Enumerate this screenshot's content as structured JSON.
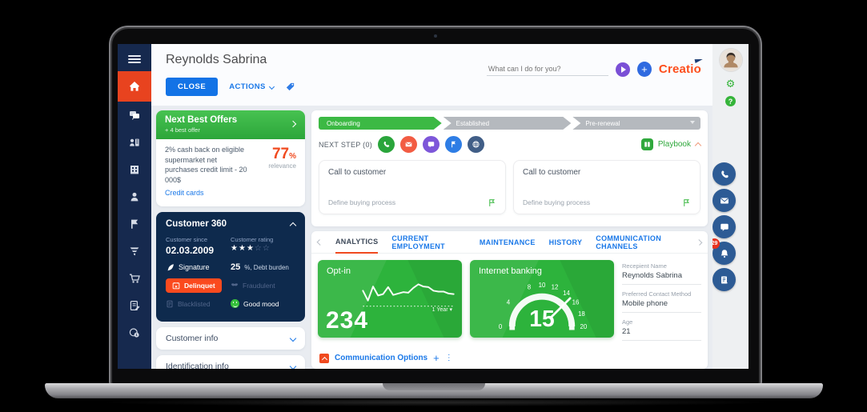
{
  "app": {
    "logo": "Creatio",
    "assistant_placeholder": "What can I do for you?",
    "colors": {
      "brand_orange": "#fd4e1c",
      "accent_orange": "#f04a1f",
      "green": "#2db33c",
      "navy": "#16294e",
      "blue": "#1a78e8"
    }
  },
  "sidebar": {
    "icons": [
      "hamburger-menu-icon",
      "home-icon",
      "chats-icon",
      "contacts-icon",
      "accounts-icon",
      "person-icon",
      "flag-icon",
      "funnel-icon",
      "cart-icon",
      "orders-icon",
      "finance-icon"
    ]
  },
  "header": {
    "title": "Reynolds Sabrina",
    "close_label": "CLOSE",
    "actions_label": "ACTIONS"
  },
  "rail": {
    "icons": [
      "user-avatar",
      "gear-icon",
      "help-icon"
    ],
    "gear_glyph": "⚙"
  },
  "fabs": {
    "icons": [
      "phone-icon",
      "mail-icon",
      "chat-icon",
      "bell-icon",
      "feed-icon"
    ],
    "bell_badge": "29"
  },
  "next_best_offers": {
    "title": "Next Best Offers",
    "subtitle": "+ 4 best offer",
    "offer_text": "2% cash back on eligible supermarket net purchases credit limit - 20 000$",
    "relevance_value": "77",
    "relevance_unit": "%",
    "relevance_label": "relevance",
    "link_label": "Credit cards"
  },
  "customer360": {
    "title": "Customer 360",
    "since_label": "Customer since",
    "since_value": "02.03.2009",
    "rating_label": "Customer rating",
    "rating": 3,
    "rating_max": 5,
    "signature_label": "Signature",
    "debt_value": "25",
    "debt_label": "%, Debt burden",
    "flag_delinquent": "Delinquet",
    "flag_fraudulent": "Fraudulent",
    "flag_blacklisted": "Blacklisted",
    "flag_mood": "Good mood"
  },
  "accordions": [
    {
      "label": "Customer info"
    },
    {
      "label": "Identification info"
    }
  ],
  "pipeline": {
    "stages": [
      "Onboarding",
      "Established",
      "Pre-renewal"
    ],
    "active_stage": "Onboarding"
  },
  "next_step": {
    "label": "NEXT STEP (0)",
    "icons": [
      "call-step-icon",
      "email-step-icon",
      "chat-step-icon",
      "task-step-icon",
      "web-step-icon"
    ],
    "playbook_label": "Playbook"
  },
  "tasks": [
    {
      "title": "Call to customer",
      "subtitle": "Define buying process"
    },
    {
      "title": "Call to customer",
      "subtitle": "Define buying process"
    }
  ],
  "tabs": {
    "items": [
      "ANALYTICS",
      "CURRENT EMPLOYMENT",
      "MAINTENANCE",
      "HISTORY",
      "COMMUNICATION CHANNELS"
    ],
    "active": "ANALYTICS"
  },
  "chart_data": [
    {
      "type": "line",
      "title": "Opt-in",
      "total": "234",
      "period_label": "1 Year",
      "values": [
        45,
        10,
        60,
        28,
        33,
        58,
        30,
        35,
        40,
        38,
        55,
        68,
        60,
        58,
        45,
        42,
        42,
        35,
        33
      ],
      "baseline": "dotted",
      "legend_position": "none"
    },
    {
      "type": "gauge",
      "title": "Internet banking",
      "value": 15,
      "min": 0,
      "max": 20,
      "tick_labels": [
        0,
        4,
        8,
        10,
        12,
        14,
        16,
        18,
        20
      ]
    }
  ],
  "details": [
    {
      "label": "Recepient Name",
      "value": "Reynolds Sabrina"
    },
    {
      "label": "Preferred Contact Method",
      "value": "Mobile phone"
    },
    {
      "label": "Age",
      "value": "21"
    }
  ],
  "communication_options": {
    "label": "Communication Options"
  }
}
